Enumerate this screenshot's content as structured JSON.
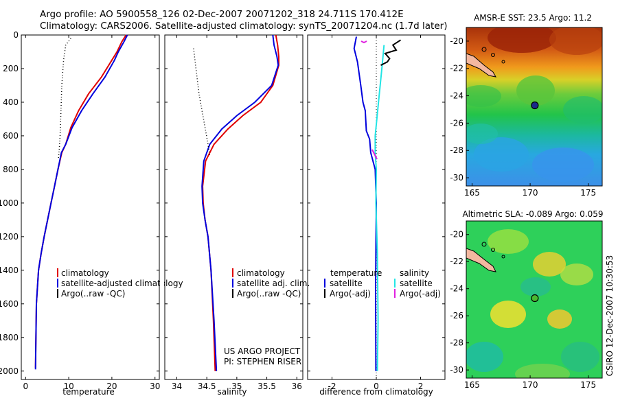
{
  "header": {
    "line1": "Argo profile: AO 5900558_126 02-Dec-2007 20071202_318 24.711S 170.412E",
    "line2": "Climatology: CARS2006. Satellite-adjusted climatology: synTS_20071204.nc (1.7d later)"
  },
  "side_label": "CSIRO 12-Dec-2007 10:30:53",
  "project": {
    "line1": "US ARGO PROJECT",
    "line2": "PI: STEPHEN RISER"
  },
  "colors": {
    "climatology": "#e00000",
    "satellite": "#0000dd",
    "argo": "#000000",
    "sal_satellite": "#22e5e5",
    "sal_argo": "#e020e0"
  },
  "chart_data": [
    {
      "type": "line",
      "xlabel": "temperature",
      "xlim": [
        -1,
        31
      ],
      "ylim": [
        2050,
        0
      ],
      "xticks": [
        "0",
        "10",
        "20",
        "30"
      ],
      "yticks": [
        "0",
        "200",
        "400",
        "600",
        "800",
        "1000",
        "1200",
        "1400",
        "1600",
        "1800",
        "2000"
      ],
      "legend": [
        "climatology",
        "satellite-adjusted climatology",
        "Argo(..raw -QC)"
      ],
      "series": [
        {
          "name": "climatology",
          "color": "#e00000",
          "x": [
            23.3,
            22.3,
            21.2,
            20,
            17.6,
            14.6,
            12.3,
            10.5,
            9.3,
            8.4,
            7.5,
            6.7,
            5.9,
            5.1,
            4.3,
            3.6,
            3.0,
            2.5,
            2.3
          ],
          "y": [
            0,
            40,
            100,
            150,
            250,
            350,
            450,
            550,
            650,
            700,
            800,
            900,
            1000,
            1100,
            1200,
            1300,
            1400,
            1600,
            1980
          ]
        },
        {
          "name": "satellite-adjusted climatology",
          "color": "#0000dd",
          "x": [
            23.6,
            22.8,
            21.5,
            20.6,
            18.4,
            15.6,
            13,
            10.8,
            9.3,
            8.3,
            7.5,
            6.7,
            5.9,
            5.1,
            4.3,
            3.6,
            3.0,
            2.5,
            2.3
          ],
          "y": [
            0,
            40,
            100,
            150,
            250,
            350,
            450,
            550,
            650,
            700,
            800,
            900,
            1000,
            1100,
            1200,
            1300,
            1400,
            1600,
            1990
          ]
        },
        {
          "name": "Argo(..raw -QC)",
          "color": "#000000",
          "dotted": true,
          "x": [
            10.5,
            9.3,
            8.8,
            8.4,
            8.2,
            8.0,
            7.8,
            7.6
          ],
          "y": [
            20,
            60,
            150,
            300,
            450,
            600,
            680,
            740
          ]
        }
      ]
    },
    {
      "type": "line",
      "xlabel": "salinity",
      "xlim": [
        33.8,
        36.1
      ],
      "ylim": [
        2050,
        0
      ],
      "xticks": [
        "34",
        "34.5",
        "35",
        "35.5",
        "36"
      ],
      "legend": [
        "climatology",
        "satellite adj. clim.",
        "Argo(..raw -QC)"
      ],
      "series": [
        {
          "name": "climatology",
          "color": "#e00000",
          "x": [
            35.65,
            35.68,
            35.7,
            35.7,
            35.6,
            35.4,
            35.1,
            34.85,
            34.62,
            34.48,
            34.43,
            34.44,
            34.47,
            34.52,
            34.57,
            34.61,
            34.64
          ],
          "y": [
            0,
            60,
            130,
            180,
            300,
            400,
            480,
            560,
            650,
            750,
            900,
            1000,
            1100,
            1200,
            1400,
            1700,
            2000
          ]
        },
        {
          "name": "satellite adj. clim.",
          "color": "#0000dd",
          "x": [
            35.6,
            35.62,
            35.67,
            35.69,
            35.58,
            35.3,
            35.0,
            34.75,
            34.55,
            34.45,
            34.42,
            34.43,
            34.47,
            34.52,
            34.57,
            34.62,
            34.66
          ],
          "y": [
            0,
            60,
            130,
            180,
            300,
            400,
            480,
            560,
            650,
            750,
            900,
            1000,
            1100,
            1200,
            1400,
            1700,
            2000
          ]
        },
        {
          "name": "Argo(..raw -QC)",
          "color": "#000000",
          "dotted": true,
          "x": [
            34.28,
            34.32,
            34.37,
            34.42,
            34.47,
            34.52,
            34.55
          ],
          "y": [
            80,
            200,
            350,
            450,
            550,
            650,
            720
          ]
        }
      ]
    },
    {
      "type": "line",
      "xlabel": "difference from climatology",
      "xlim": [
        -3.1,
        3.1
      ],
      "ylim": [
        2050,
        0
      ],
      "xticks": [
        "-2",
        "0",
        "2"
      ],
      "legend_left": {
        "title": "temperature",
        "items": [
          "satellite",
          "Argo(-adj)"
        ]
      },
      "legend_right": {
        "title": "salinity",
        "items": [
          "satellite",
          "Argo(-adj)"
        ]
      },
      "series": [
        {
          "name": "temperature satellite",
          "color": "#0000dd",
          "x": [
            -0.9,
            -1.0,
            -0.85,
            -0.7,
            -0.6,
            -0.5,
            -0.45,
            -0.3,
            -0.25,
            -0.05,
            0.0,
            -0.03,
            -0.02
          ],
          "y": [
            10,
            80,
            160,
            300,
            400,
            450,
            570,
            620,
            700,
            800,
            1000,
            1500,
            2000
          ]
        },
        {
          "name": "salinity satellite",
          "color": "#22e5e5",
          "x": [
            0.35,
            0.25,
            0.1,
            -0.05,
            -0.05,
            0.0,
            -0.02,
            0.05,
            0.08,
            0.05
          ],
          "y": [
            60,
            200,
            400,
            600,
            700,
            800,
            1000,
            1300,
            1700,
            2000
          ]
        },
        {
          "name": "temperature Argo(-adj)",
          "color": "#000000",
          "x": [
            1.1,
            0.75,
            0.9,
            0.4,
            0.6,
            0.5,
            0.2
          ],
          "y": [
            30,
            60,
            90,
            110,
            140,
            160,
            180
          ]
        }
      ]
    },
    {
      "type": "heatmap",
      "title": "AMSR-E SST: 23.5 Argo: 11.2",
      "xlim": [
        164.5,
        176.2
      ],
      "ylim": [
        -30.6,
        -19
      ],
      "xticks": [
        "165",
        "170",
        "175"
      ],
      "yticks": [
        "-20",
        "-22",
        "-24",
        "-26",
        "-28",
        "-30"
      ],
      "point": {
        "lon": 170.4,
        "lat": -24.7
      }
    },
    {
      "type": "heatmap",
      "title": "Altimetric SLA: -0.089 Argo: 0.059",
      "xlim": [
        164.5,
        176.2
      ],
      "ylim": [
        -30.6,
        -19
      ],
      "xticks": [
        "165",
        "170",
        "175"
      ],
      "yticks": [
        "-20",
        "-22",
        "-24",
        "-26",
        "-28",
        "-30"
      ],
      "point": {
        "lon": 170.4,
        "lat": -24.7
      }
    }
  ]
}
